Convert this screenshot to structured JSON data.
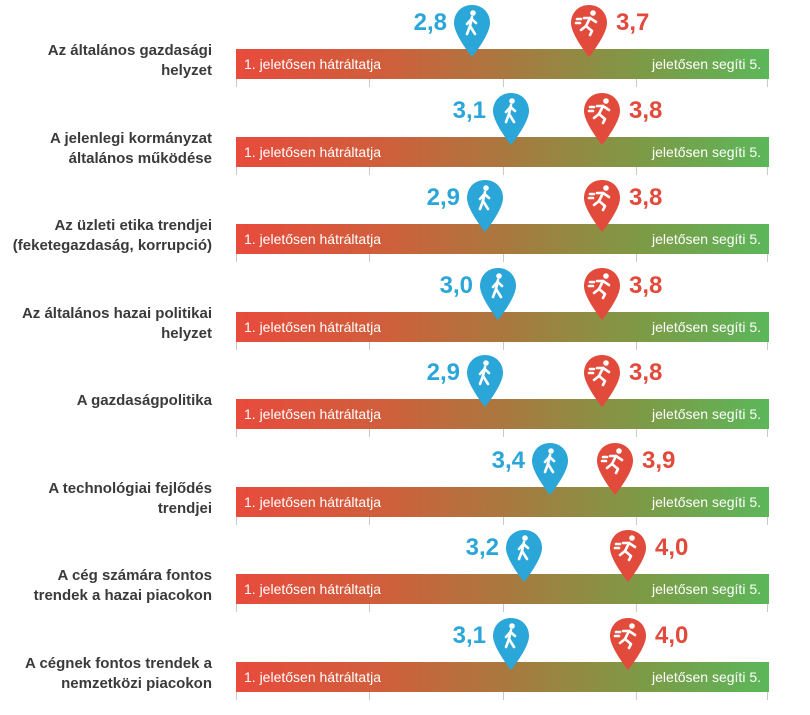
{
  "chart_data": {
    "type": "range-scale",
    "scale": {
      "min": 1,
      "max": 5
    },
    "left_label": "1. jeletősen hátráltatja",
    "right_label": "jeletősen segíti 5.",
    "colors": {
      "blue": "#2ba6d8",
      "red": "#e24a3b",
      "bar_start": "#e84b3c",
      "bar_end": "#5cb75a"
    },
    "icons": {
      "blue": "walking-person-icon",
      "red": "running-person-icon"
    },
    "rows": [
      {
        "label": "Az általános gazdasági helyzet",
        "blue": 2.8,
        "blue_text": "2,8",
        "red": 3.7,
        "red_text": "3,7"
      },
      {
        "label": "A jelenlegi kormányzat általános működése",
        "blue": 3.1,
        "blue_text": "3,1",
        "red": 3.8,
        "red_text": "3,8"
      },
      {
        "label": "Az üzleti etika trendjei (feketegazdaság, korrupció)",
        "blue": 2.9,
        "blue_text": "2,9",
        "red": 3.8,
        "red_text": "3,8"
      },
      {
        "label": "Az általános hazai politikai helyzet",
        "blue": 3.0,
        "blue_text": "3,0",
        "red": 3.8,
        "red_text": "3,8"
      },
      {
        "label": "A gazdaságpolitika",
        "blue": 2.9,
        "blue_text": "2,9",
        "red": 3.8,
        "red_text": "3,8"
      },
      {
        "label": "A technológiai fejlődés trendjei",
        "blue": 3.4,
        "blue_text": "3,4",
        "red": 3.9,
        "red_text": "3,9"
      },
      {
        "label": "A cég számára fontos trendek a hazai piacokon",
        "blue": 3.2,
        "blue_text": "3,2",
        "red": 4.0,
        "red_text": "4,0"
      },
      {
        "label": "A cégnek fontos trendek a nemzetközi piacokon",
        "blue": 3.1,
        "blue_text": "3,1",
        "red": 4.0,
        "red_text": "4,0"
      }
    ]
  }
}
